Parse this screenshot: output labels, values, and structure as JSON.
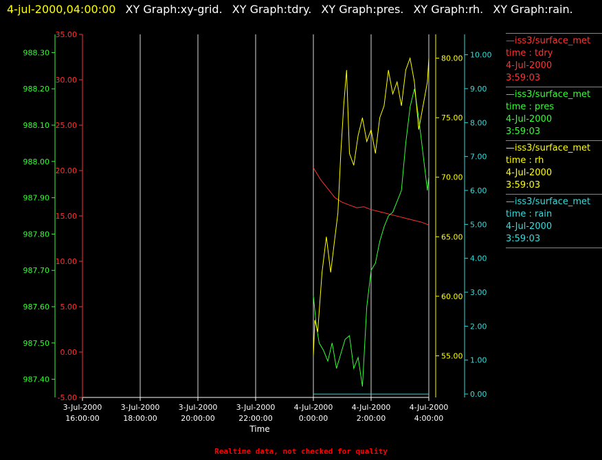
{
  "header": {
    "timestamp": "4-jul-2000,04:00:00",
    "graphs": [
      "XY Graph:xy-grid.",
      "XY Graph:tdry.",
      "XY Graph:pres.",
      "XY Graph:rh.",
      "XY Graph:rain."
    ]
  },
  "footer": {
    "note": "Realtime data, not checked for quality"
  },
  "legend": [
    {
      "source": "—iss3/surface_met",
      "variable": "time : tdry",
      "date": "4-Jul-2000",
      "time": "3:59:03",
      "color": "#ff3333"
    },
    {
      "source": "—iss3/surface_met",
      "variable": "time : pres",
      "date": "4-Jul-2000",
      "time": "3:59:03",
      "color": "#33ff33"
    },
    {
      "source": "—iss3/surface_met",
      "variable": "time : rh",
      "date": "4-Jul-2000",
      "time": "3:59:03",
      "color": "#ffff00"
    },
    {
      "source": "—iss3/surface_met",
      "variable": "time : rain",
      "date": "4-Jul-2000",
      "time": "3:59:03",
      "color": "#33dddd"
    }
  ],
  "chart_data": {
    "type": "line",
    "xlabel": "Time",
    "x_ticks": [
      [
        "3-Jul-2000",
        "16:00:00"
      ],
      [
        "3-Jul-2000",
        "18:00:00"
      ],
      [
        "3-Jul-2000",
        "20:00:00"
      ],
      [
        "3-Jul-2000",
        "22:00:00"
      ],
      [
        "4-Jul-2000",
        "0:00:00"
      ],
      [
        "4-Jul-2000",
        "2:00:00"
      ],
      [
        "4-Jul-2000",
        "4:00:00"
      ]
    ],
    "x_range_hours": [
      -8,
      4
    ],
    "axes": {
      "pres": {
        "color": "#33ff33",
        "range": [
          987.35,
          988.35
        ],
        "ticks": [
          "988.30",
          "988.20",
          "988.10",
          "988.00",
          "987.90",
          "987.80",
          "987.70",
          "987.60",
          "987.50",
          "987.40"
        ],
        "tick_values": [
          988.3,
          988.2,
          988.1,
          988.0,
          987.9,
          987.8,
          987.7,
          987.6,
          987.5,
          987.4
        ]
      },
      "tdry": {
        "color": "#ff3333",
        "range": [
          -5,
          35
        ],
        "ticks": [
          "35.00",
          "30.00",
          "25.00",
          "20.00",
          "15.00",
          "10.00",
          "5.00",
          "0.00",
          "-5.00"
        ],
        "tick_values": [
          35,
          30,
          25,
          20,
          15,
          10,
          5,
          0,
          -5
        ]
      },
      "rh": {
        "color": "#ffff00",
        "range": [
          51.5,
          82
        ],
        "ticks": [
          "80.00",
          "75.00",
          "70.00",
          "65.00",
          "60.00",
          "55.00"
        ],
        "tick_values": [
          80,
          75,
          70,
          65,
          60,
          55
        ]
      },
      "rain": {
        "color": "#33dddd",
        "range": [
          -0.1,
          10.6
        ],
        "ticks": [
          "10.00",
          "9.00",
          "8.00",
          "7.00",
          "6.00",
          "5.00",
          "4.00",
          "3.00",
          "2.00",
          "1.00",
          "0.00"
        ],
        "tick_values": [
          10,
          9,
          8,
          7,
          6,
          5,
          4,
          3,
          2,
          1,
          0
        ]
      }
    },
    "series": [
      {
        "name": "time : tdry",
        "axis": "tdry",
        "color": "#ff3333",
        "x": [
          0,
          0.25,
          0.5,
          0.75,
          1.0,
          1.25,
          1.5,
          1.75,
          2.0,
          2.25,
          2.5,
          2.75,
          3.0,
          3.25,
          3.5,
          3.75,
          4.0
        ],
        "y": [
          20.3,
          19.0,
          18.0,
          17.0,
          16.5,
          16.2,
          15.9,
          16.0,
          15.7,
          15.5,
          15.3,
          15.1,
          14.9,
          14.7,
          14.5,
          14.3,
          14.0
        ]
      },
      {
        "name": "time : pres",
        "axis": "pres",
        "color": "#33ff33",
        "x": [
          0,
          0.1,
          0.2,
          0.35,
          0.5,
          0.65,
          0.8,
          0.95,
          1.1,
          1.25,
          1.4,
          1.55,
          1.7,
          1.85,
          2.0,
          2.15,
          2.3,
          2.45,
          2.6,
          2.75,
          2.9,
          3.05,
          3.2,
          3.35,
          3.5,
          3.65,
          3.8,
          3.95,
          4.0
        ],
        "y": [
          987.63,
          987.55,
          987.5,
          987.48,
          987.45,
          987.5,
          987.43,
          987.47,
          987.51,
          987.52,
          987.43,
          987.46,
          987.38,
          987.6,
          987.7,
          987.72,
          987.78,
          987.82,
          987.85,
          987.86,
          987.89,
          987.92,
          988.05,
          988.15,
          988.2,
          988.12,
          988.02,
          987.92,
          987.96
        ]
      },
      {
        "name": "time : rh",
        "axis": "rh",
        "color": "#ffff00",
        "x": [
          0,
          0.05,
          0.15,
          0.3,
          0.45,
          0.6,
          0.75,
          0.85,
          0.95,
          1.05,
          1.15,
          1.25,
          1.4,
          1.55,
          1.7,
          1.85,
          2.0,
          2.15,
          2.3,
          2.45,
          2.6,
          2.75,
          2.9,
          3.05,
          3.2,
          3.35,
          3.5,
          3.65,
          3.8,
          3.95,
          4.0
        ],
        "y": [
          55.0,
          58.0,
          57.0,
          62.0,
          65.0,
          62.0,
          65.0,
          67.0,
          72.0,
          76.0,
          79.0,
          72.0,
          71.0,
          73.5,
          75.0,
          73.0,
          74.0,
          72.0,
          75.0,
          76.0,
          79.0,
          77.0,
          78.0,
          76.0,
          79.0,
          80.0,
          78.0,
          74.0,
          76.0,
          78.0,
          80.0
        ]
      },
      {
        "name": "time : rain",
        "axis": "rain",
        "color": "#33dddd",
        "x": [
          0,
          4.0
        ],
        "y": [
          0.0,
          0.0
        ]
      }
    ]
  }
}
